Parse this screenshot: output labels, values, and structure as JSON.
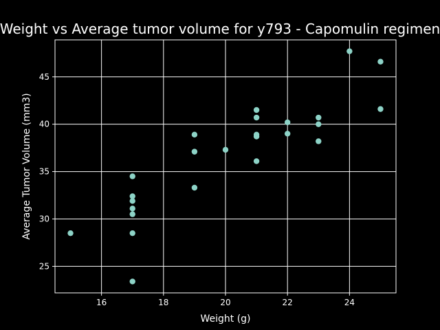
{
  "chart_data": {
    "type": "scatter",
    "title": "Weight vs Average tumor volume for y793 - Capomulin regimen",
    "xlabel": "Weight (g)",
    "ylabel": "Average Tumor Volume (mm3)",
    "xlim": [
      14.5,
      25.5
    ],
    "ylim": [
      22.2,
      48.9
    ],
    "xticks": [
      16,
      18,
      20,
      22,
      24
    ],
    "yticks": [
      25,
      30,
      35,
      40,
      45
    ],
    "grid": true,
    "colors": {
      "background": "#000000",
      "marker": "#8dd3c7",
      "grid": "#ffffff",
      "axis": "#ffffff"
    },
    "points": [
      {
        "x": 15,
        "y": 28.5
      },
      {
        "x": 17,
        "y": 34.5
      },
      {
        "x": 17,
        "y": 32.4
      },
      {
        "x": 17,
        "y": 31.9
      },
      {
        "x": 17,
        "y": 31.1
      },
      {
        "x": 17,
        "y": 30.5
      },
      {
        "x": 17,
        "y": 28.5
      },
      {
        "x": 17,
        "y": 23.4
      },
      {
        "x": 19,
        "y": 38.9
      },
      {
        "x": 19,
        "y": 37.1
      },
      {
        "x": 19,
        "y": 33.3
      },
      {
        "x": 20,
        "y": 37.3
      },
      {
        "x": 21,
        "y": 41.5
      },
      {
        "x": 21,
        "y": 40.7
      },
      {
        "x": 21,
        "y": 38.9
      },
      {
        "x": 21,
        "y": 38.7
      },
      {
        "x": 21,
        "y": 36.1
      },
      {
        "x": 22,
        "y": 40.2
      },
      {
        "x": 22,
        "y": 39.0
      },
      {
        "x": 23,
        "y": 40.7
      },
      {
        "x": 23,
        "y": 40.0
      },
      {
        "x": 23,
        "y": 38.2
      },
      {
        "x": 24,
        "y": 47.7
      },
      {
        "x": 25,
        "y": 46.6
      },
      {
        "x": 25,
        "y": 41.6
      }
    ]
  }
}
